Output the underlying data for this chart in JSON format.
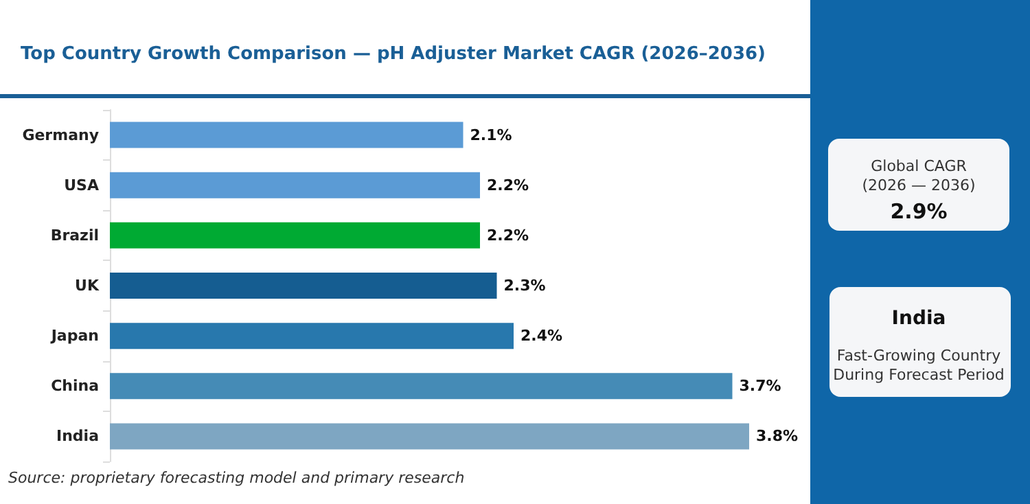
{
  "chart_data": {
    "type": "bar",
    "orientation": "horizontal",
    "title": "Top Country Growth Comparison — pH Adjuster Market CAGR (2026–2036)",
    "categories": [
      "Germany",
      "USA",
      "Brazil",
      "UK",
      "Japan",
      "China",
      "India"
    ],
    "values": [
      2.1,
      2.2,
      2.2,
      2.3,
      2.4,
      3.7,
      3.8
    ],
    "colors": [
      "#5b9bd5",
      "#5b9bd5",
      "#00aa33",
      "#155d91",
      "#2878ad",
      "#458bb6",
      "#7ea6c2"
    ],
    "value_labels": [
      "2.1%",
      "2.2%",
      "2.2%",
      "2.3%",
      "2.4%",
      "3.7%",
      "3.8%"
    ],
    "annotations": [
      "Global CAGR\n(2026 — 2036)",
      "2.9%",
      "India",
      "Fast-Growing Country\nDuring Forecast Period",
      "Source: proprietary forecasting model and primary research"
    ]
  }
}
